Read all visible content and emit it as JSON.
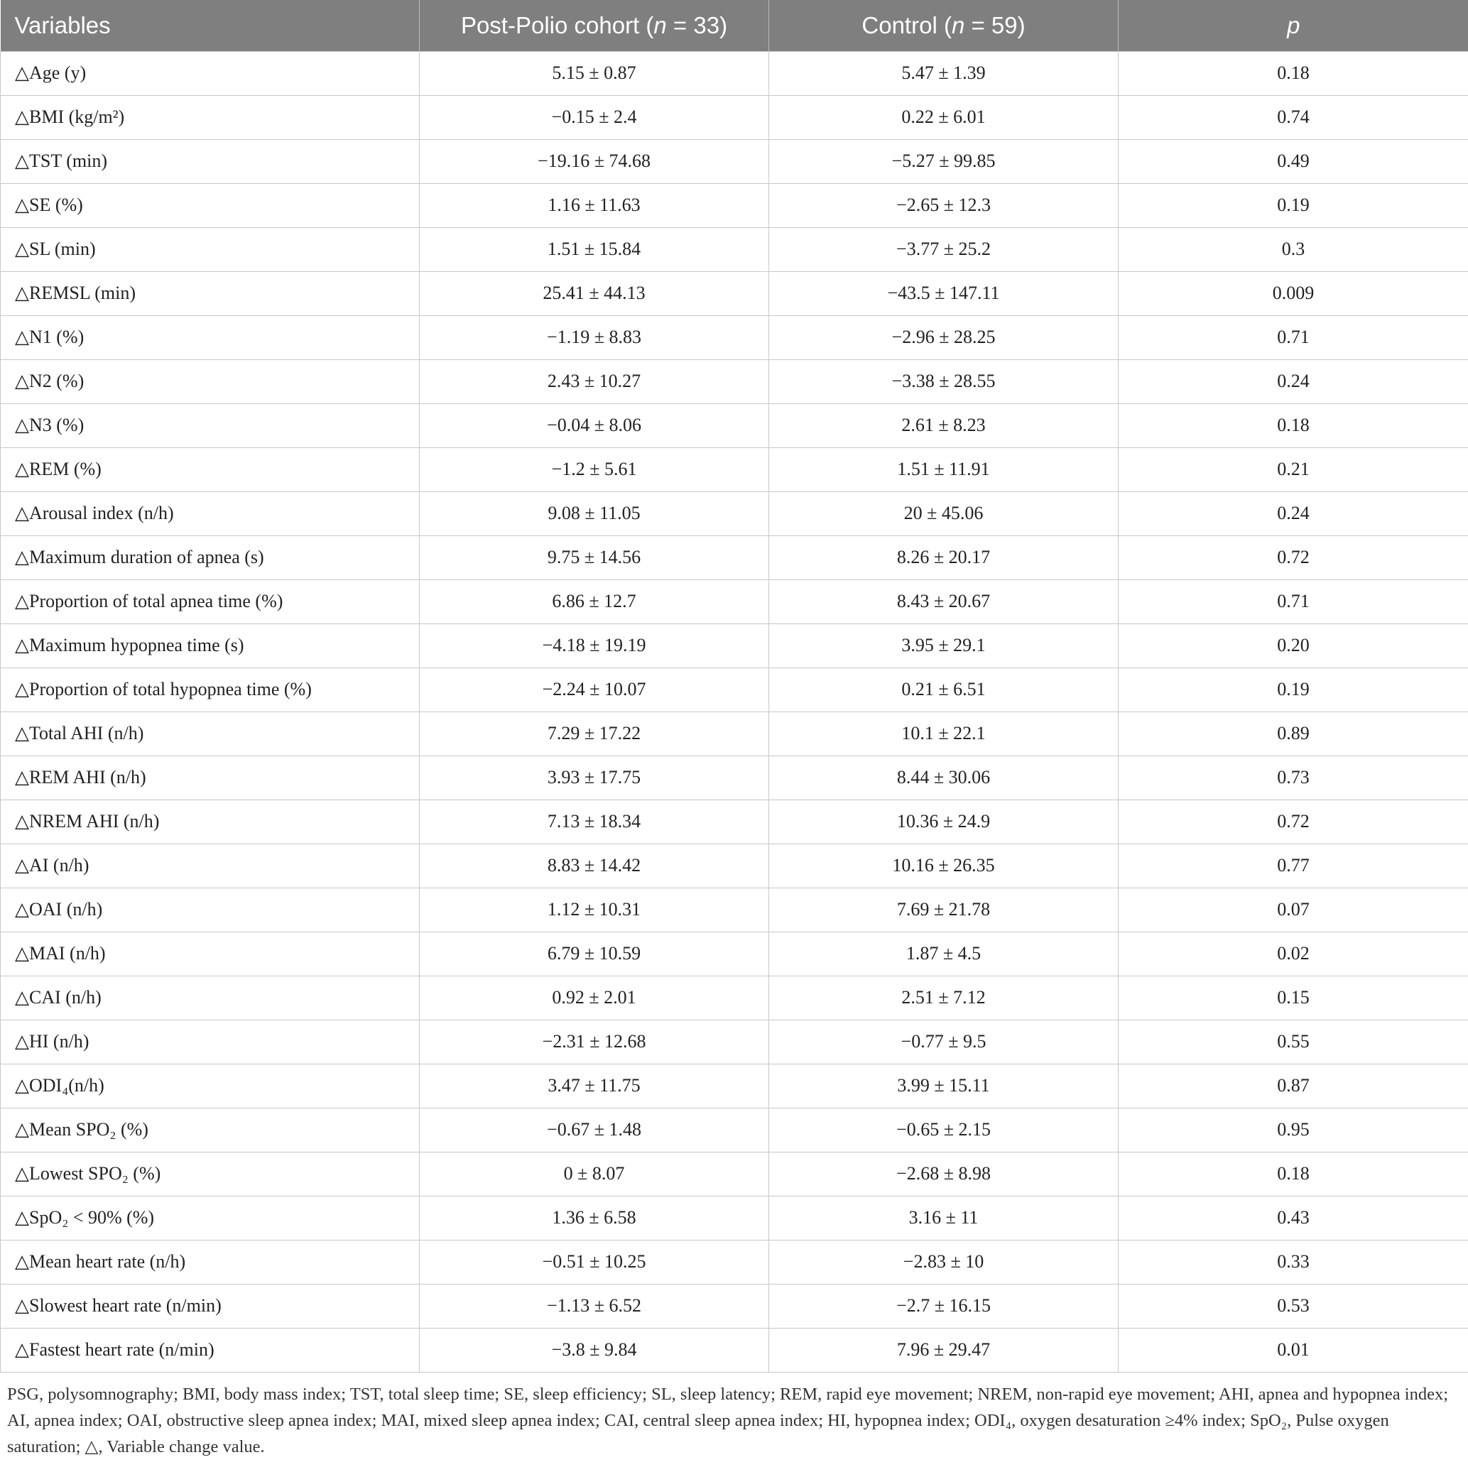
{
  "table": {
    "headers": [
      [
        {
          "text": "Variables"
        }
      ],
      [
        {
          "text": "Post-Polio cohort ("
        },
        {
          "text": "n",
          "italic": true
        },
        {
          "text": " = 33)"
        }
      ],
      [
        {
          "text": "Control ("
        },
        {
          "text": "n",
          "italic": true
        },
        {
          "text": " = 59)"
        }
      ],
      [
        {
          "text": "p",
          "italic": true
        }
      ]
    ],
    "rows": [
      [
        "△Age (y)",
        "5.15 ± 0.87",
        "5.47 ± 1.39",
        "0.18"
      ],
      [
        "△BMI (kg/m²)",
        "−0.15 ± 2.4",
        "0.22 ± 6.01",
        "0.74"
      ],
      [
        "△TST (min)",
        "−19.16 ± 74.68",
        "−5.27 ± 99.85",
        "0.49"
      ],
      [
        "△SE (%)",
        "1.16 ± 11.63",
        "−2.65 ± 12.3",
        "0.19"
      ],
      [
        "△SL (min)",
        "1.51 ± 15.84",
        "−3.77 ± 25.2",
        "0.3"
      ],
      [
        "△REMSL (min)",
        "25.41 ± 44.13",
        "−43.5 ± 147.11",
        "0.009"
      ],
      [
        "△N1 (%)",
        "−1.19 ± 8.83",
        "−2.96 ± 28.25",
        "0.71"
      ],
      [
        "△N2 (%)",
        "2.43 ± 10.27",
        "−3.38 ± 28.55",
        "0.24"
      ],
      [
        "△N3 (%)",
        "−0.04 ± 8.06",
        "2.61 ± 8.23",
        "0.18"
      ],
      [
        "△REM (%)",
        "−1.2 ± 5.61",
        "1.51 ± 11.91",
        "0.21"
      ],
      [
        "△Arousal index (n/h)",
        "9.08 ± 11.05",
        "20 ± 45.06",
        "0.24"
      ],
      [
        "△Maximum duration of apnea (s)",
        "9.75 ± 14.56",
        "8.26 ± 20.17",
        "0.72"
      ],
      [
        "△Proportion of total apnea time (%)",
        "6.86 ± 12.7",
        "8.43 ± 20.67",
        "0.71"
      ],
      [
        "△Maximum hypopnea time (s)",
        "−4.18 ± 19.19",
        "3.95 ± 29.1",
        "0.20"
      ],
      [
        "△Proportion of total hypopnea time (%)",
        "−2.24 ± 10.07",
        "0.21 ± 6.51",
        "0.19"
      ],
      [
        "△Total AHI (n/h)",
        "7.29 ± 17.22",
        "10.1 ± 22.1",
        "0.89"
      ],
      [
        "△REM AHI (n/h)",
        "3.93 ± 17.75",
        "8.44 ± 30.06",
        "0.73"
      ],
      [
        "△NREM AHI (n/h)",
        "7.13 ± 18.34",
        "10.36 ± 24.9",
        "0.72"
      ],
      [
        "△AI (n/h)",
        "8.83 ± 14.42",
        "10.16 ± 26.35",
        "0.77"
      ],
      [
        "△OAI (n/h)",
        "1.12 ± 10.31",
        "7.69 ± 21.78",
        "0.07"
      ],
      [
        "△MAI (n/h)",
        "6.79 ± 10.59",
        "1.87 ± 4.5",
        "0.02"
      ],
      [
        "△CAI (n/h)",
        "0.92 ± 2.01",
        "2.51 ± 7.12",
        "0.15"
      ],
      [
        "△HI (n/h)",
        "−2.31 ± 12.68",
        "−0.77 ± 9.5",
        "0.55"
      ],
      [
        "△ODI₄(n/h)",
        "3.47 ± 11.75",
        "3.99 ± 15.11",
        "0.87"
      ],
      [
        "△Mean SPO₂ (%)",
        "−0.67 ± 1.48",
        "−0.65 ± 2.15",
        "0.95"
      ],
      [
        "△Lowest SPO₂ (%)",
        "0 ± 8.07",
        "−2.68 ± 8.98",
        "0.18"
      ],
      [
        "△SpO₂ < 90% (%)",
        "1.36 ± 6.58",
        "3.16 ± 11",
        "0.43"
      ],
      [
        "△Mean heart rate (n/h)",
        "−0.51 ± 10.25",
        "−2.83 ± 10",
        "0.33"
      ],
      [
        "△Slowest heart rate (n/min)",
        "−1.13 ± 6.52",
        "−2.7 ± 16.15",
        "0.53"
      ],
      [
        "△Fastest heart rate (n/min)",
        "−3.8 ± 9.84",
        "7.96 ± 29.47",
        "0.01"
      ]
    ]
  },
  "footnote": "PSG, polysomnography; BMI, body mass index; TST, total sleep time; SE, sleep efficiency; SL, sleep latency; REM, rapid eye movement; NREM, non-rapid eye movement; AHI, apnea and hypopnea index; AI, apnea index; OAI, obstructive sleep apnea index; MAI, mixed sleep apnea index; CAI, central sleep apnea index; HI, hypopnea index; ODI₄, oxygen desaturation ≥4% index; SpO₂, Pulse oxygen saturation; △, Variable change value."
}
